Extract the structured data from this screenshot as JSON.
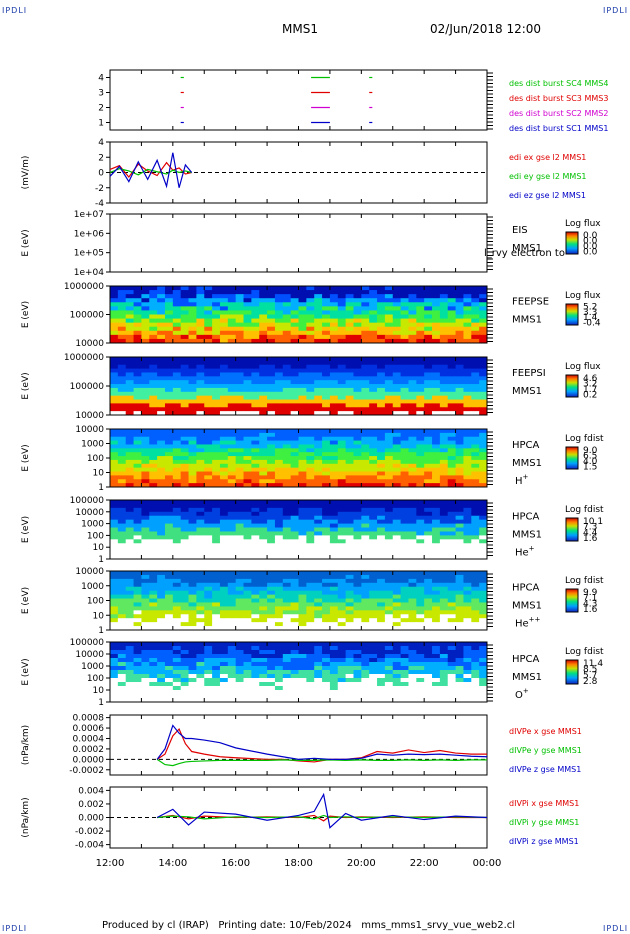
{
  "corners": {
    "label": "IPDLI"
  },
  "header": {
    "spacecraft": "MMS1",
    "datetime": "02/Jun/2018 12:00"
  },
  "footer": {
    "text": "Produced by cl (IRAP)   Printing date: 10/Feb/2024   mms_mms1_srvy_vue_web2.cl"
  },
  "x_axis": {
    "ticks": [
      "12:00",
      "14:00",
      "16:00",
      "18:00",
      "20:00",
      "22:00",
      "00:00"
    ]
  },
  "colors": {
    "red": "#e00000",
    "green": "#00c000",
    "blue": "#0000c8",
    "magenta": "#d000d0"
  },
  "chart_data": [
    {
      "type": "line",
      "panel": "burst",
      "ylabel": "",
      "yticks": [
        "4",
        "3",
        "2",
        "1"
      ],
      "ylim": [
        0.5,
        4.5
      ],
      "x_units": "hours after 12:00",
      "series": [
        {
          "name": "des dist burst SC1 MMS1",
          "color": "#0000c8",
          "level": 1,
          "intervals": [
            [
              2.25,
              2.35
            ],
            [
              6.4,
              7.0
            ],
            [
              8.25,
              8.35
            ]
          ]
        },
        {
          "name": "des dist burst SC2 MMS2",
          "color": "#d000d0",
          "level": 2,
          "intervals": [
            [
              2.25,
              2.35
            ],
            [
              6.4,
              7.0
            ],
            [
              8.25,
              8.35
            ]
          ]
        },
        {
          "name": "des dist burst SC3 MMS3",
          "color": "#e00000",
          "level": 3,
          "intervals": [
            [
              2.25,
              2.35
            ],
            [
              6.4,
              7.0
            ],
            [
              8.25,
              8.35
            ]
          ]
        },
        {
          "name": "des dist burst SC4 MMS4",
          "color": "#00c000",
          "level": 4,
          "intervals": [
            [
              2.25,
              2.35
            ],
            [
              6.4,
              7.0
            ],
            [
              8.25,
              8.35
            ]
          ]
        }
      ]
    },
    {
      "type": "line",
      "panel": "edi",
      "ylabel": "(mV/m)",
      "yticks": [
        "4",
        "2",
        "0",
        "-2",
        "-4"
      ],
      "ylim": [
        -4,
        4
      ],
      "x": [
        0.0,
        0.3,
        0.6,
        0.9,
        1.2,
        1.5,
        1.8,
        2.0,
        2.2,
        2.4,
        2.6
      ],
      "series": [
        {
          "name": "edi ex gse l2 MMS1",
          "color": "#e00000",
          "values": [
            0.4,
            0.9,
            -0.6,
            1.1,
            0.2,
            -0.4,
            1.3,
            0.3,
            0.6,
            -0.2,
            0.0
          ]
        },
        {
          "name": "edi ey gse l2 MMS1",
          "color": "#00c000",
          "values": [
            0.0,
            0.5,
            0.2,
            -0.3,
            0.4,
            0.1,
            -0.2,
            0.3,
            0.0,
            0.2,
            0.0
          ]
        },
        {
          "name": "edi ez gse l2 MMS1",
          "color": "#0000c8",
          "values": [
            -0.5,
            0.8,
            -1.2,
            1.4,
            -0.9,
            1.6,
            -1.8,
            2.6,
            -2.0,
            1.0,
            0.0
          ]
        }
      ]
    },
    {
      "type": "heatmap",
      "panel": "eis",
      "ylabel": "E (eV)",
      "yticks": [
        "1e+07",
        "1e+06",
        "1e+05",
        "1e+04"
      ],
      "labels": [
        "EIS",
        "MMS1"
      ],
      "overlap_label": "l_rvy electron to",
      "colorbar": {
        "title": "Log flux",
        "ticks": [
          "0.0",
          "0.0",
          "0.0",
          "0.0"
        ]
      }
    },
    {
      "type": "heatmap",
      "panel": "feepse",
      "ylabel": "E (eV)",
      "yticks": [
        "1000000",
        "100000",
        "10000"
      ],
      "labels": [
        "FEEPSE",
        "MMS1"
      ],
      "colorbar": {
        "title": "Log flux",
        "ticks": [
          "5.2",
          "3.3",
          "1.4",
          "-0.4"
        ]
      }
    },
    {
      "type": "heatmap",
      "panel": "feepsi",
      "ylabel": "E (eV)",
      "yticks": [
        "1000000",
        "100000",
        "10000"
      ],
      "labels": [
        "FEEPSI",
        "MMS1"
      ],
      "colorbar": {
        "title": "Log flux",
        "ticks": [
          "4.6",
          "3.2",
          "1.7",
          "0.2"
        ]
      }
    },
    {
      "type": "heatmap",
      "panel": "hpca_h",
      "ylabel": "E (eV)",
      "yticks": [
        "10000",
        "1000",
        "100",
        "10",
        "1"
      ],
      "labels": [
        "HPCA",
        "MMS1"
      ],
      "species": "H",
      "charge": "+",
      "colorbar": {
        "title": "Log fdist",
        "ticks": [
          "9.0",
          "6.5",
          "4.0",
          "1.5"
        ]
      }
    },
    {
      "type": "heatmap",
      "panel": "hpca_he",
      "ylabel": "E (eV)",
      "yticks": [
        "100000",
        "10000",
        "1000",
        "100",
        "10",
        "1"
      ],
      "labels": [
        "HPCA",
        "MMS1"
      ],
      "species": "He",
      "charge": "+",
      "colorbar": {
        "title": "Log fdist",
        "ticks": [
          "10.1",
          "7.3",
          "4.4",
          "1.6"
        ]
      }
    },
    {
      "type": "heatmap",
      "panel": "hpca_hepp",
      "ylabel": "E (eV)",
      "yticks": [
        "10000",
        "1000",
        "100",
        "10",
        "1"
      ],
      "labels": [
        "HPCA",
        "MMS1"
      ],
      "species": "He",
      "charge": "++",
      "colorbar": {
        "title": "Log fdist",
        "ticks": [
          "9.9",
          "7.1",
          "4.3",
          "1.6"
        ]
      }
    },
    {
      "type": "heatmap",
      "panel": "hpca_o",
      "ylabel": "E (eV)",
      "yticks": [
        "100000",
        "10000",
        "1000",
        "100",
        "10",
        "1"
      ],
      "labels": [
        "HPCA",
        "MMS1"
      ],
      "species": "O",
      "charge": "+",
      "colorbar": {
        "title": "Log fdist",
        "ticks": [
          "11.4",
          "8.5",
          "5.7",
          "2.8"
        ]
      }
    },
    {
      "type": "line",
      "panel": "divpe",
      "ylabel": "(nPa/km)",
      "yticks": [
        "0.0008",
        "0.0006",
        "0.0004",
        "0.0002",
        "0.0000",
        "-0.0002"
      ],
      "ylim": [
        -0.0003,
        0.00085
      ],
      "x": [
        1.5,
        1.75,
        2.0,
        2.2,
        2.4,
        2.6,
        3.0,
        3.5,
        4.0,
        5.0,
        5.5,
        6.0,
        6.5,
        7.0,
        7.5,
        8.0,
        8.5,
        9.0,
        9.5,
        10.0,
        10.5,
        11.0,
        11.5,
        12.0
      ],
      "series": [
        {
          "name": "dIVPe x gse MMS1",
          "color": "#e00000",
          "values": [
            0.0,
            0.0001,
            0.00045,
            0.00058,
            0.0003,
            0.00015,
            0.0001,
            5e-05,
            3e-05,
            0.0,
            0.0,
            -3e-05,
            -5e-05,
            0.0,
            0.0,
            3e-05,
            0.00015,
            0.00012,
            0.00018,
            0.00013,
            0.00017,
            0.00012,
            0.0001,
            0.0001
          ]
        },
        {
          "name": "dIVPe y gse MMS1",
          "color": "#00c000",
          "values": [
            0.0,
            -0.0001,
            -0.00012,
            -8e-05,
            -5e-05,
            -4e-05,
            -3e-05,
            -2e-05,
            -2e-05,
            -2e-05,
            -1e-05,
            -2e-05,
            -2e-05,
            -1e-05,
            -2e-05,
            -1e-05,
            -2e-05,
            -2e-05,
            -1e-05,
            -2e-05,
            -1e-05,
            -2e-05,
            -1e-05,
            -1e-05
          ]
        },
        {
          "name": "dIVPe z gse MMS1",
          "color": "#0000c8",
          "values": [
            0.0,
            0.0002,
            0.00065,
            0.0005,
            0.0004,
            0.0004,
            0.00037,
            0.00032,
            0.00022,
            0.0001,
            5e-05,
            0.0,
            2e-05,
            0.0,
            0.0,
            2e-05,
            0.0001,
            8e-05,
            0.0001,
            9e-05,
            0.0001,
            8e-05,
            6e-05,
            5e-05
          ]
        }
      ]
    },
    {
      "type": "line",
      "panel": "divpi",
      "ylabel": "(nPa/km)",
      "yticks": [
        "0.004",
        "0.002",
        "0.000",
        "-0.002",
        "-0.004"
      ],
      "ylim": [
        -0.0045,
        0.0045
      ],
      "x": [
        1.5,
        2.0,
        2.5,
        3.0,
        4.0,
        5.0,
        6.0,
        6.5,
        6.8,
        7.0,
        7.5,
        8.0,
        9.0,
        10.0,
        11.0,
        12.0
      ],
      "series": [
        {
          "name": "dIVPi x gse MMS1",
          "color": "#e00000",
          "values": [
            0.0,
            0.0003,
            -0.0002,
            0.0002,
            0.0,
            0.0001,
            0.0,
            0.0003,
            -0.0005,
            0.0002,
            0.0,
            0.0001,
            0.0,
            0.0001,
            0.0,
            0.0
          ]
        },
        {
          "name": "dIVPi y gse MMS1",
          "color": "#00c000",
          "values": [
            0.0,
            0.0002,
            0.0001,
            -0.0002,
            0.0001,
            0.0,
            0.0001,
            -0.0002,
            0.0003,
            0.0,
            0.0001,
            0.0,
            0.0001,
            0.0,
            0.0001,
            0.0
          ]
        },
        {
          "name": "dIVPi z gse MMS1",
          "color": "#0000c8",
          "values": [
            0.0,
            0.0012,
            -0.0011,
            0.0008,
            0.0005,
            -0.0004,
            0.0003,
            0.0009,
            0.0034,
            -0.0015,
            0.0006,
            -0.0004,
            0.0003,
            -0.0003,
            0.0002,
            0.0
          ]
        }
      ]
    }
  ]
}
